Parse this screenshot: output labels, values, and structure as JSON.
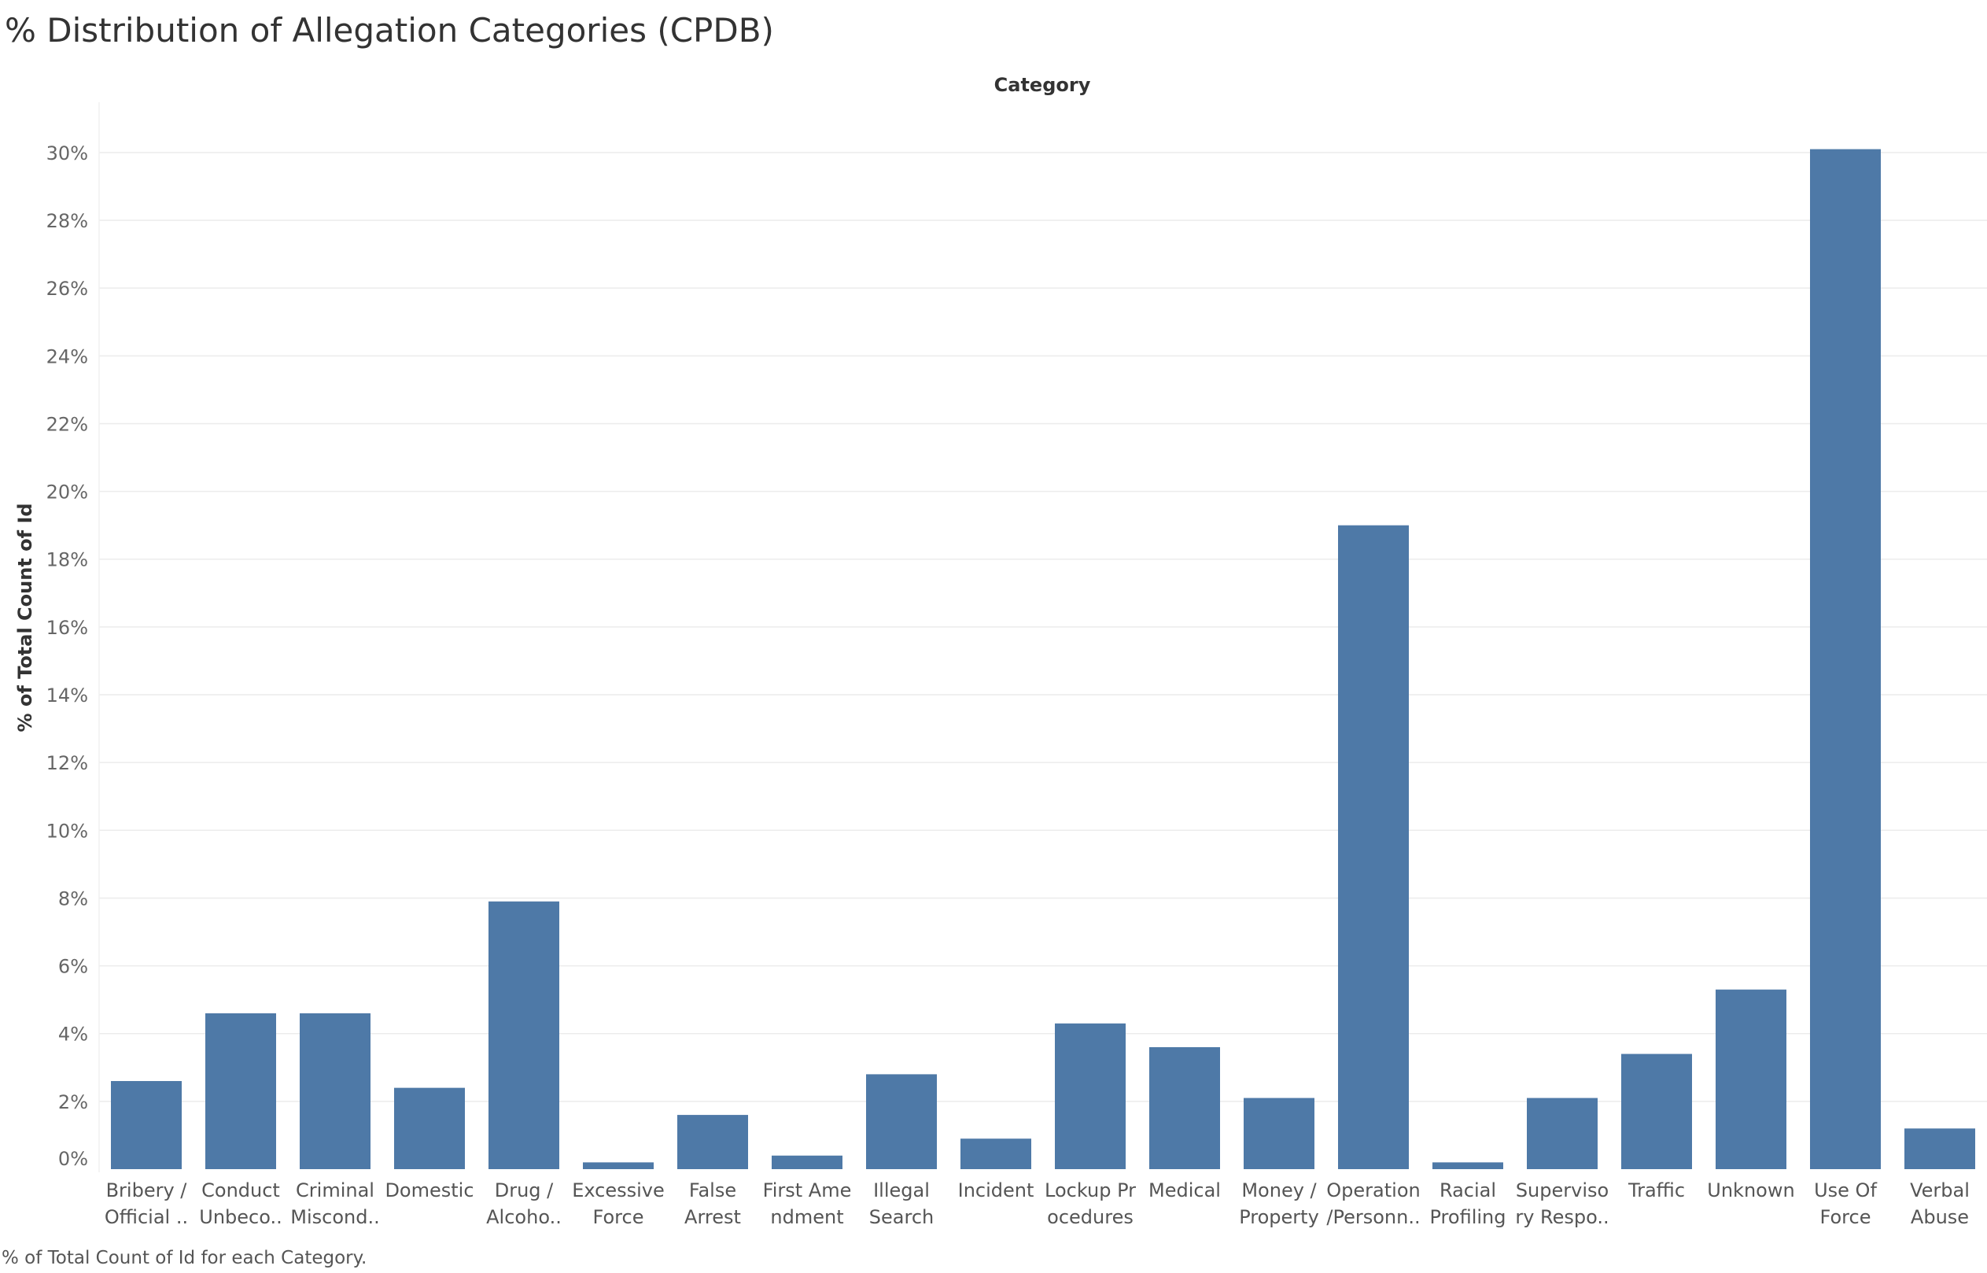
{
  "title": "% Distribution of Allegation Categories (CPDB)",
  "caption": "% of Total Count of Id for each Category.",
  "colors": {
    "bar": "#4e79a7",
    "grid": "#ececec"
  },
  "chart_data": {
    "type": "bar",
    "column_header": "Category",
    "ylabel": "% of Total Count of Id",
    "ylim": [
      0,
      31
    ],
    "yticks": [
      "0%",
      "2%",
      "4%",
      "6%",
      "8%",
      "10%",
      "12%",
      "14%",
      "16%",
      "18%",
      "20%",
      "22%",
      "24%",
      "26%",
      "28%",
      "30%"
    ],
    "categories": [
      [
        "Bribery /",
        "Official .."
      ],
      [
        "Conduct",
        "Unbeco.."
      ],
      [
        "Criminal",
        "Miscond.."
      ],
      [
        "Domestic"
      ],
      [
        "Drug /",
        "Alcoho.."
      ],
      [
        "Excessive",
        "Force"
      ],
      [
        "False",
        "Arrest"
      ],
      [
        "First Ame",
        "ndment"
      ],
      [
        "Illegal",
        "Search"
      ],
      [
        "Incident"
      ],
      [
        "Lockup Pr",
        "ocedures"
      ],
      [
        "Medical"
      ],
      [
        "Money /",
        "Property"
      ],
      [
        "Operation",
        "/Personn.."
      ],
      [
        "Racial",
        "Profiling"
      ],
      [
        "Superviso",
        "ry Respo.."
      ],
      [
        "Traffic"
      ],
      [
        "Unknown"
      ],
      [
        "Use Of",
        "Force"
      ],
      [
        "Verbal",
        "Abuse"
      ]
    ],
    "values": [
      2.6,
      4.6,
      4.6,
      2.4,
      7.9,
      0.2,
      1.6,
      0.4,
      2.8,
      0.9,
      4.3,
      3.6,
      2.1,
      19.0,
      0.2,
      2.1,
      3.4,
      5.3,
      30.1,
      1.2
    ],
    "grid": true
  }
}
